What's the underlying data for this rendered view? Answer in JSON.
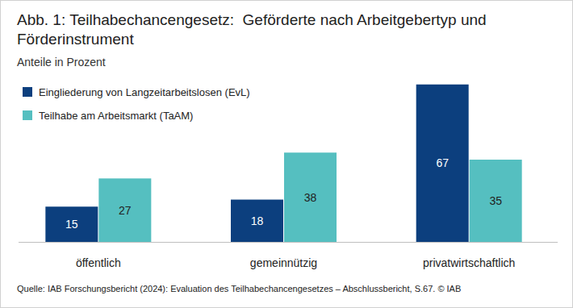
{
  "chart_data": {
    "type": "bar",
    "title": "Abb. 1: Teilhabechancengesetz:  Geförderte nach Arbeitgebertyp und Förderinstrument",
    "subtitle": "Anteile in Prozent",
    "categories": [
      "öffentlich",
      "gemeinnützig",
      "privatwirtschaftlich"
    ],
    "series": [
      {
        "name": "Eingliederung von Langzeitarbeitslosen (EvL)",
        "color": "#0c3f7e",
        "values": [
          15,
          18,
          67
        ]
      },
      {
        "name": "Teilhabe am Arbeitsmarkt (TaAM)",
        "color": "#55bfc0",
        "values": [
          27,
          38,
          35
        ]
      }
    ],
    "ylim": [
      0,
      70
    ],
    "data_labels": true,
    "tick_labels": "x",
    "legend": "top-left",
    "source": "Quelle: IAB Forschungsbericht (2024): Evaluation des Teilhabechancengesetzes – Abschlussbericht, S.67.  © IAB"
  }
}
